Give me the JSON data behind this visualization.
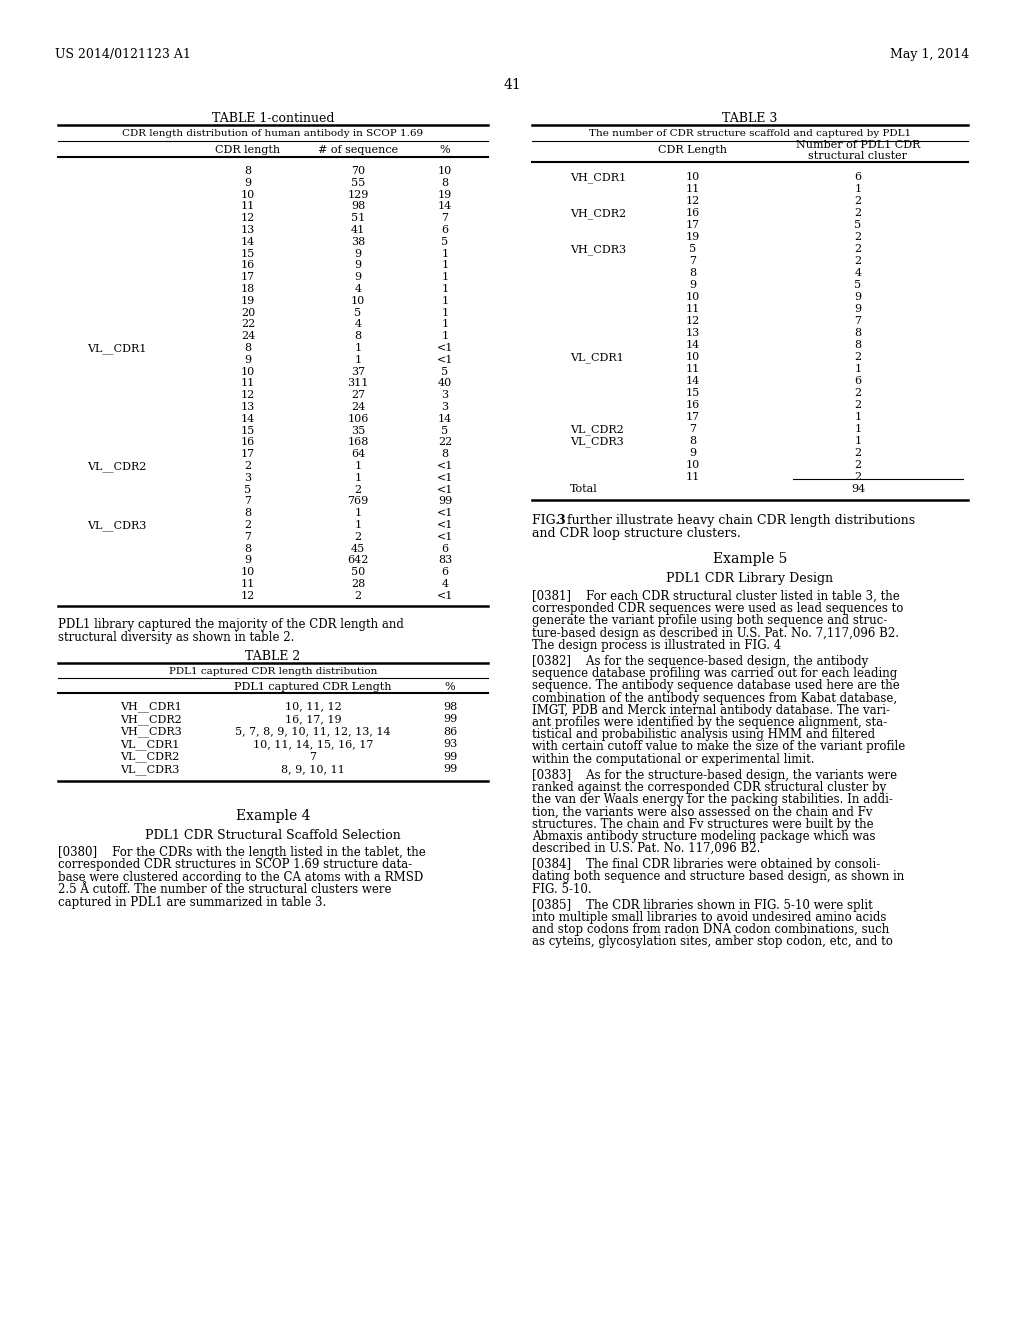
{
  "header_left": "US 2014/0121123 A1",
  "header_right": "May 1, 2014",
  "page_number": "41",
  "table1_title": "TABLE 1-continued",
  "table1_subtitle": "CDR length distribution of human antibody in SCOP 1.69",
  "table1_rows": [
    [
      "",
      "8",
      "70",
      "10"
    ],
    [
      "",
      "9",
      "55",
      "8"
    ],
    [
      "",
      "10",
      "129",
      "19"
    ],
    [
      "",
      "11",
      "98",
      "14"
    ],
    [
      "",
      "12",
      "51",
      "7"
    ],
    [
      "",
      "13",
      "41",
      "6"
    ],
    [
      "",
      "14",
      "38",
      "5"
    ],
    [
      "",
      "15",
      "9",
      "1"
    ],
    [
      "",
      "16",
      "9",
      "1"
    ],
    [
      "",
      "17",
      "9",
      "1"
    ],
    [
      "",
      "18",
      "4",
      "1"
    ],
    [
      "",
      "19",
      "10",
      "1"
    ],
    [
      "",
      "20",
      "5",
      "1"
    ],
    [
      "",
      "22",
      "4",
      "1"
    ],
    [
      "",
      "24",
      "8",
      "1"
    ],
    [
      "VL__CDR1",
      "8",
      "1",
      "<1"
    ],
    [
      "",
      "9",
      "1",
      "<1"
    ],
    [
      "",
      "10",
      "37",
      "5"
    ],
    [
      "",
      "11",
      "311",
      "40"
    ],
    [
      "",
      "12",
      "27",
      "3"
    ],
    [
      "",
      "13",
      "24",
      "3"
    ],
    [
      "",
      "14",
      "106",
      "14"
    ],
    [
      "",
      "15",
      "35",
      "5"
    ],
    [
      "",
      "16",
      "168",
      "22"
    ],
    [
      "",
      "17",
      "64",
      "8"
    ],
    [
      "VL__CDR2",
      "2",
      "1",
      "<1"
    ],
    [
      "",
      "3",
      "1",
      "<1"
    ],
    [
      "",
      "5",
      "2",
      "<1"
    ],
    [
      "",
      "7",
      "769",
      "99"
    ],
    [
      "",
      "8",
      "1",
      "<1"
    ],
    [
      "VL__CDR3",
      "2",
      "1",
      "<1"
    ],
    [
      "",
      "7",
      "2",
      "<1"
    ],
    [
      "",
      "8",
      "45",
      "6"
    ],
    [
      "",
      "9",
      "642",
      "83"
    ],
    [
      "",
      "10",
      "50",
      "6"
    ],
    [
      "",
      "11",
      "28",
      "4"
    ],
    [
      "",
      "12",
      "2",
      "<1"
    ]
  ],
  "table2_title": "TABLE 2",
  "table2_subtitle": "PDL1 captured CDR length distribution",
  "table2_rows": [
    [
      "VH__CDR1",
      "10, 11, 12",
      "98"
    ],
    [
      "VH__CDR2",
      "16, 17, 19",
      "99"
    ],
    [
      "VH__CDR3",
      "5, 7, 8, 9, 10, 11, 12, 13, 14",
      "86"
    ],
    [
      "VL__CDR1",
      "10, 11, 14, 15, 16, 17",
      "93"
    ],
    [
      "VL__CDR2",
      "7",
      "99"
    ],
    [
      "VL__CDR3",
      "8, 9, 10, 11",
      "99"
    ]
  ],
  "table3_title": "TABLE 3",
  "table3_subtitle": "The number of CDR structure scaffold and captured by PDL1",
  "table3_rows": [
    [
      "VH_CDR1",
      "10",
      "6"
    ],
    [
      "",
      "11",
      "1"
    ],
    [
      "",
      "12",
      "2"
    ],
    [
      "VH_CDR2",
      "16",
      "2"
    ],
    [
      "",
      "17",
      "5"
    ],
    [
      "",
      "19",
      "2"
    ],
    [
      "VH_CDR3",
      "5",
      "2"
    ],
    [
      "",
      "7",
      "2"
    ],
    [
      "",
      "8",
      "4"
    ],
    [
      "",
      "9",
      "5"
    ],
    [
      "",
      "10",
      "9"
    ],
    [
      "",
      "11",
      "9"
    ],
    [
      "",
      "12",
      "7"
    ],
    [
      "",
      "13",
      "8"
    ],
    [
      "",
      "14",
      "8"
    ],
    [
      "VL_CDR1",
      "10",
      "2"
    ],
    [
      "",
      "11",
      "1"
    ],
    [
      "",
      "14",
      "6"
    ],
    [
      "",
      "15",
      "2"
    ],
    [
      "",
      "16",
      "2"
    ],
    [
      "",
      "17",
      "1"
    ],
    [
      "VL_CDR2",
      "7",
      "1"
    ],
    [
      "VL_CDR3",
      "8",
      "1"
    ],
    [
      "",
      "9",
      "2"
    ],
    [
      "",
      "10",
      "2"
    ],
    [
      "",
      "11",
      "2"
    ],
    [
      "Total",
      "",
      "94"
    ]
  ],
  "example4_title": "Example 4",
  "example4_subtitle": "PDL1 CDR Structural Scaffold Selection",
  "para0380_lines": [
    "[0380]    For the CDRs with the length listed in the tablet, the",
    "corresponded CDR structures in SCOP 1.69 structure data-",
    "base were clustered according to the CA atoms with a RMSD",
    "2.5 Å cutoff. The number of the structural clusters were",
    "captured in PDL1 are summarized in table 3."
  ],
  "example5_title": "Example 5",
  "example5_subtitle": "PDL1 CDR Library Design",
  "para0381_lines": [
    "[0381]    For each CDR structural cluster listed in table 3, the",
    "corresponded CDR sequences were used as lead sequences to",
    "generate the variant profile using both sequence and struc-",
    "ture-based design as described in U.S. Pat. No. 7,117,096 B2.",
    "The design process is illustrated in FIG. 4"
  ],
  "para0382_lines": [
    "[0382]    As for the sequence-based design, the antibody",
    "sequence database profiling was carried out for each leading",
    "sequence. The antibody sequence database used here are the",
    "combination of the antibody sequences from Kabat database,",
    "IMGT, PDB and Merck internal antibody database. The vari-",
    "ant profiles were identified by the sequence alignment, sta-",
    "tistical and probabilistic analysis using HMM and filtered",
    "with certain cutoff value to make the size of the variant profile",
    "within the computational or experimental limit."
  ],
  "para0383_lines": [
    "[0383]    As for the structure-based design, the variants were",
    "ranked against the corresponded CDR structural cluster by",
    "the van der Waals energy for the packing stabilities. In addi-",
    "tion, the variants were also assessed on the chain and Fv",
    "structures. The chain and Fv structures were built by the",
    "Abmaxis antibody structure modeling package which was",
    "described in U.S. Pat. No. 117,096 B2."
  ],
  "para0384_lines": [
    "[0384]    The final CDR libraries were obtained by consoli-",
    "dating both sequence and structure based design, as shown in",
    "FIG. 5-10."
  ],
  "para0385_lines": [
    "[0385]    The CDR libraries shown in FIG. 5-10 were split",
    "into multiple small libraries to avoid undesired amino acids",
    "and stop codons from radon DNA codon combinations, such",
    "as cyteins, glycosylation sites, amber stop codon, etc, and to"
  ]
}
